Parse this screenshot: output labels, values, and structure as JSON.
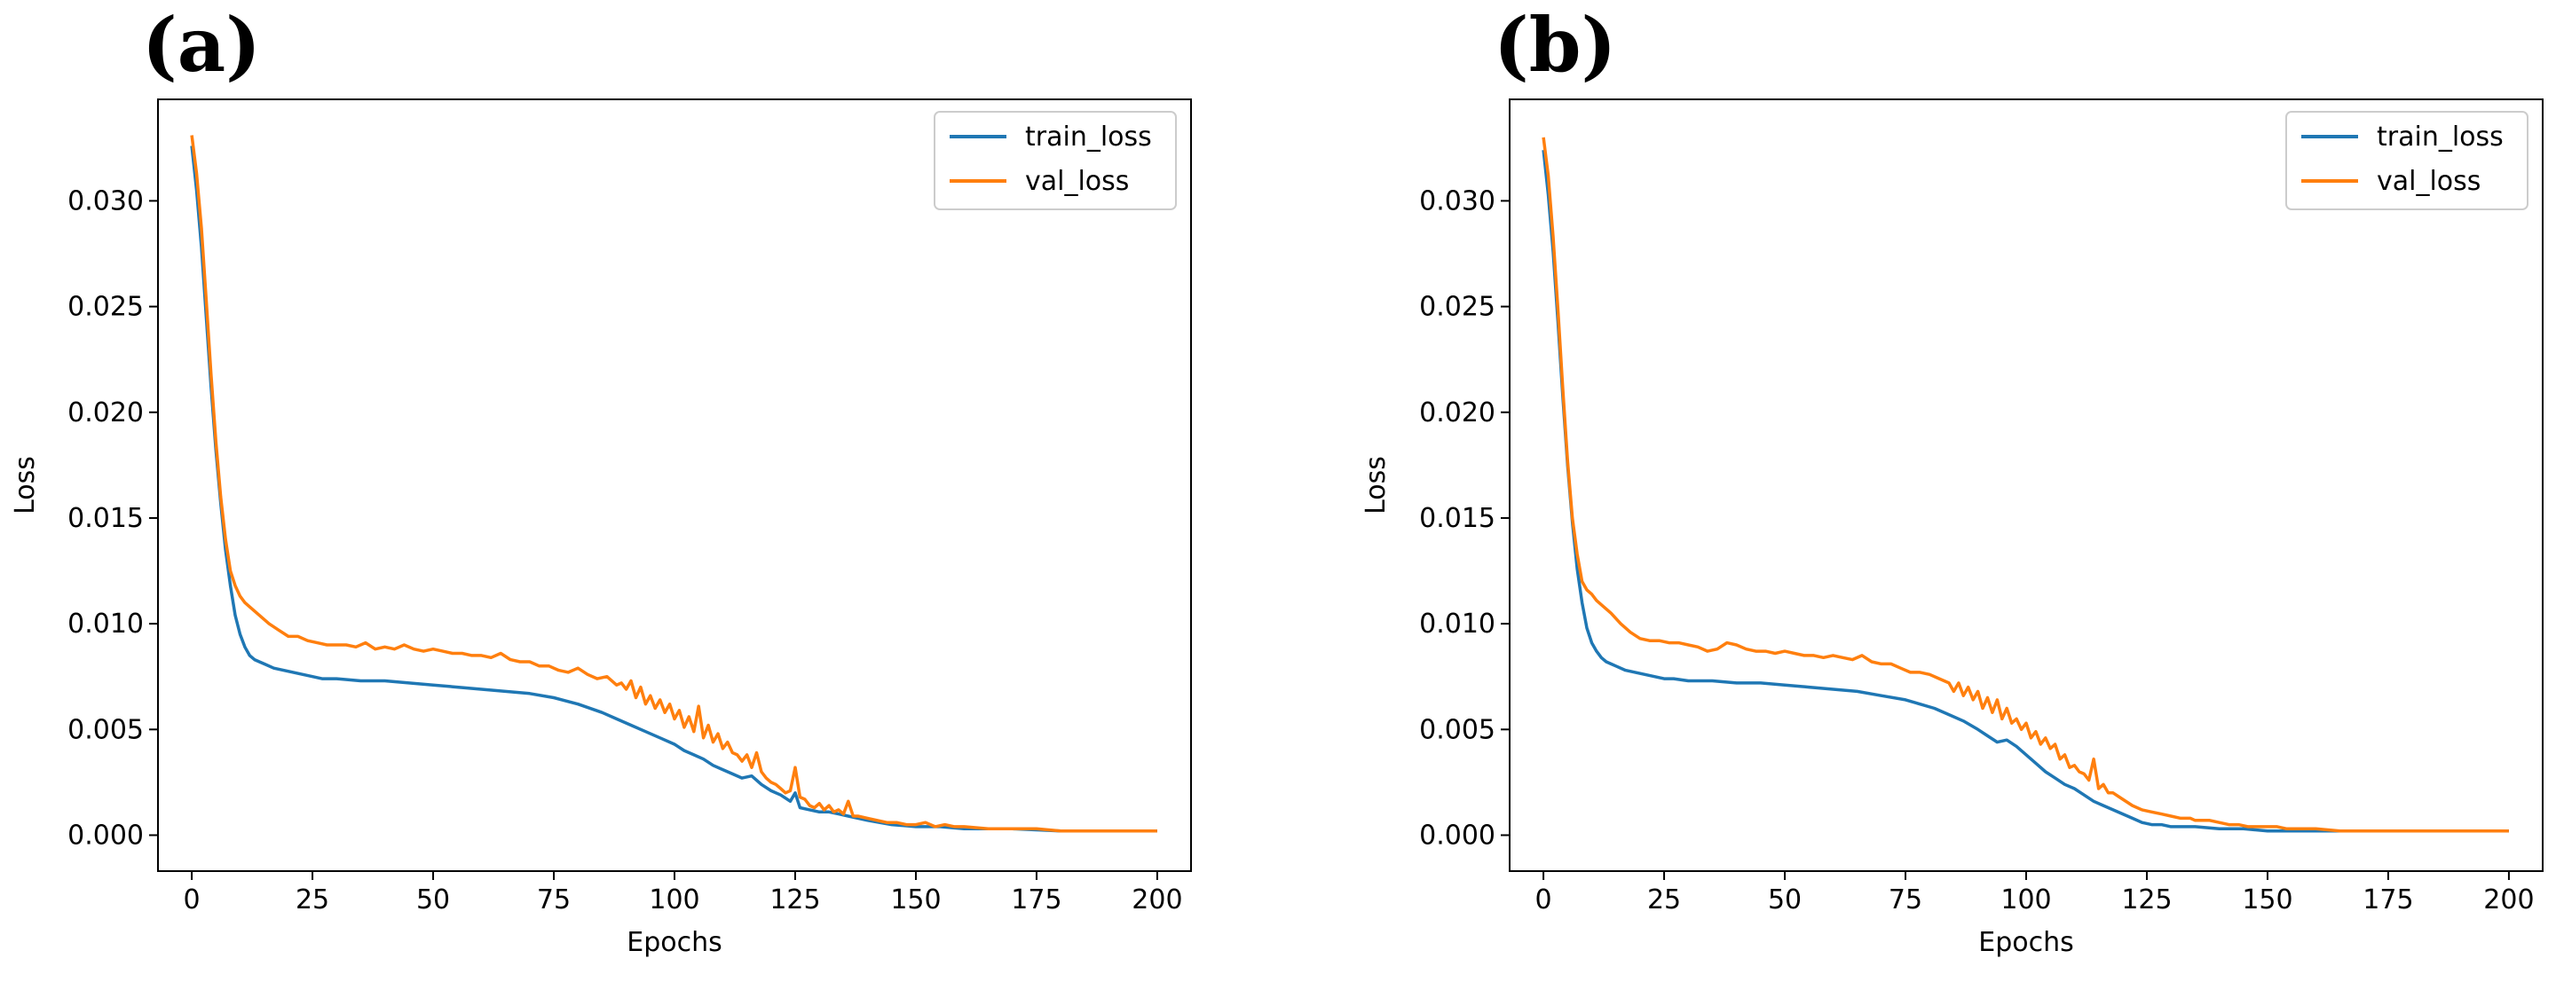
{
  "colors": {
    "train": "#1f77b4",
    "val": "#ff7f0e",
    "axes": "#000000"
  },
  "chart_data": [
    {
      "type": "line",
      "panel_label": "(a)",
      "title": "",
      "xlabel": "Epochs",
      "ylabel": "Loss",
      "xlim": [
        -7,
        207
      ],
      "ylim": [
        -0.0017,
        0.0348
      ],
      "xticks": [
        0,
        25,
        50,
        75,
        100,
        125,
        150,
        175,
        200
      ],
      "xtick_labels": [
        "0",
        "25",
        "50",
        "75",
        "100",
        "125",
        "150",
        "175",
        "200"
      ],
      "yticks": [
        0.0,
        0.005,
        0.01,
        0.015,
        0.02,
        0.025,
        0.03
      ],
      "ytick_labels": [
        "0.000",
        "0.005",
        "0.010",
        "0.015",
        "0.020",
        "0.025",
        "0.030"
      ],
      "legend": "top-right",
      "grid": false,
      "series": [
        {
          "name": "train_loss",
          "color": "#1f77b4",
          "x": [
            0,
            1,
            2,
            3,
            4,
            5,
            6,
            7,
            8,
            9,
            10,
            11,
            12,
            13,
            14,
            15,
            17,
            19,
            21,
            23,
            25,
            27,
            30,
            35,
            40,
            45,
            50,
            55,
            60,
            65,
            70,
            75,
            80,
            85,
            88,
            91,
            94,
            97,
            100,
            102,
            104,
            106,
            108,
            110,
            112,
            114,
            116,
            118,
            120,
            122,
            124,
            125,
            126,
            128,
            130,
            132,
            134,
            136,
            138,
            140,
            145,
            150,
            155,
            160,
            170,
            180,
            190,
            200
          ],
          "y": [
            0.0326,
            0.0305,
            0.0278,
            0.0245,
            0.0212,
            0.0182,
            0.0157,
            0.0135,
            0.0118,
            0.0104,
            0.0095,
            0.0089,
            0.0085,
            0.0083,
            0.0082,
            0.0081,
            0.0079,
            0.0078,
            0.0077,
            0.0076,
            0.0075,
            0.0074,
            0.0074,
            0.0073,
            0.0073,
            0.0072,
            0.0071,
            0.007,
            0.0069,
            0.0068,
            0.0067,
            0.0065,
            0.0062,
            0.0058,
            0.0055,
            0.0052,
            0.0049,
            0.0046,
            0.0043,
            0.004,
            0.0038,
            0.0036,
            0.0033,
            0.0031,
            0.0029,
            0.0027,
            0.0028,
            0.0024,
            0.0021,
            0.0019,
            0.0016,
            0.002,
            0.0013,
            0.0012,
            0.0011,
            0.0011,
            0.001,
            0.0009,
            0.0008,
            0.0007,
            0.0005,
            0.0004,
            0.0004,
            0.0003,
            0.0003,
            0.0002,
            0.0002,
            0.0002
          ]
        },
        {
          "name": "val_loss",
          "color": "#ff7f0e",
          "x": [
            0,
            1,
            2,
            3,
            4,
            5,
            6,
            7,
            8,
            9,
            10,
            11,
            12,
            14,
            16,
            18,
            20,
            22,
            24,
            26,
            28,
            30,
            32,
            34,
            36,
            38,
            40,
            42,
            44,
            46,
            48,
            50,
            52,
            54,
            56,
            58,
            60,
            62,
            64,
            66,
            68,
            70,
            72,
            74,
            76,
            78,
            80,
            82,
            84,
            86,
            88,
            89,
            90,
            91,
            92,
            93,
            94,
            95,
            96,
            97,
            98,
            99,
            100,
            101,
            102,
            103,
            104,
            105,
            106,
            107,
            108,
            109,
            110,
            111,
            112,
            113,
            114,
            115,
            116,
            117,
            118,
            119,
            120,
            121,
            122,
            123,
            124,
            125,
            126,
            127,
            128,
            129,
            130,
            131,
            132,
            133,
            134,
            135,
            136,
            137,
            138,
            140,
            142,
            144,
            146,
            148,
            150,
            152,
            154,
            156,
            158,
            160,
            165,
            170,
            175,
            180,
            185,
            190,
            195,
            200
          ],
          "y": [
            0.0331,
            0.0313,
            0.0287,
            0.0253,
            0.0218,
            0.0186,
            0.016,
            0.014,
            0.0125,
            0.0118,
            0.0113,
            0.011,
            0.0108,
            0.0104,
            0.01,
            0.0097,
            0.0094,
            0.0094,
            0.0092,
            0.0091,
            0.009,
            0.009,
            0.009,
            0.0089,
            0.0091,
            0.0088,
            0.0089,
            0.0088,
            0.009,
            0.0088,
            0.0087,
            0.0088,
            0.0087,
            0.0086,
            0.0086,
            0.0085,
            0.0085,
            0.0084,
            0.0086,
            0.0083,
            0.0082,
            0.0082,
            0.008,
            0.008,
            0.0078,
            0.0077,
            0.0079,
            0.0076,
            0.0074,
            0.0075,
            0.0071,
            0.0072,
            0.0069,
            0.0073,
            0.0065,
            0.007,
            0.0062,
            0.0066,
            0.006,
            0.0064,
            0.0058,
            0.0062,
            0.0055,
            0.0059,
            0.0051,
            0.0056,
            0.0049,
            0.0061,
            0.0046,
            0.0052,
            0.0044,
            0.0048,
            0.0041,
            0.0044,
            0.0039,
            0.0038,
            0.0035,
            0.0038,
            0.0032,
            0.0039,
            0.003,
            0.0027,
            0.0025,
            0.0024,
            0.0022,
            0.002,
            0.0021,
            0.0032,
            0.0018,
            0.0017,
            0.0014,
            0.0013,
            0.0015,
            0.0012,
            0.0014,
            0.0011,
            0.0012,
            0.001,
            0.0016,
            0.0009,
            0.0009,
            0.0008,
            0.0007,
            0.0006,
            0.0006,
            0.0005,
            0.0005,
            0.0006,
            0.0004,
            0.0005,
            0.0004,
            0.0004,
            0.0003,
            0.0003,
            0.0003,
            0.0002,
            0.0002,
            0.0002,
            0.0002,
            0.0002
          ]
        }
      ]
    },
    {
      "type": "line",
      "panel_label": "(b)",
      "title": "",
      "xlabel": "Epochs",
      "ylabel": "Loss",
      "xlim": [
        -7,
        207
      ],
      "ylim": [
        -0.0017,
        0.0348
      ],
      "xticks": [
        0,
        25,
        50,
        75,
        100,
        125,
        150,
        175,
        200
      ],
      "xtick_labels": [
        "0",
        "25",
        "50",
        "75",
        "100",
        "125",
        "150",
        "175",
        "200"
      ],
      "yticks": [
        0.0,
        0.005,
        0.01,
        0.015,
        0.02,
        0.025,
        0.03
      ],
      "ytick_labels": [
        "0.000",
        "0.005",
        "0.010",
        "0.015",
        "0.020",
        "0.025",
        "0.030"
      ],
      "legend": "top-right",
      "grid": false,
      "series": [
        {
          "name": "train_loss",
          "color": "#1f77b4",
          "x": [
            0,
            1,
            2,
            3,
            4,
            5,
            6,
            7,
            8,
            9,
            10,
            11,
            12,
            13,
            14,
            15,
            17,
            19,
            21,
            23,
            25,
            27,
            30,
            35,
            40,
            45,
            50,
            55,
            60,
            65,
            70,
            75,
            78,
            81,
            84,
            87,
            90,
            92,
            94,
            96,
            98,
            100,
            102,
            104,
            106,
            108,
            110,
            112,
            114,
            116,
            118,
            120,
            122,
            124,
            126,
            128,
            130,
            135,
            140,
            145,
            150,
            160,
            170,
            180,
            190,
            200
          ],
          "y": [
            0.0324,
            0.0303,
            0.0276,
            0.0243,
            0.0208,
            0.0175,
            0.0148,
            0.0126,
            0.011,
            0.0098,
            0.0091,
            0.0087,
            0.0084,
            0.0082,
            0.0081,
            0.008,
            0.0078,
            0.0077,
            0.0076,
            0.0075,
            0.0074,
            0.0074,
            0.0073,
            0.0073,
            0.0072,
            0.0072,
            0.0071,
            0.007,
            0.0069,
            0.0068,
            0.0066,
            0.0064,
            0.0062,
            0.006,
            0.0057,
            0.0054,
            0.005,
            0.0047,
            0.0044,
            0.0045,
            0.0042,
            0.0038,
            0.0034,
            0.003,
            0.0027,
            0.0024,
            0.0022,
            0.0019,
            0.0016,
            0.0014,
            0.0012,
            0.001,
            0.0008,
            0.0006,
            0.0005,
            0.0005,
            0.0004,
            0.0004,
            0.0003,
            0.0003,
            0.0002,
            0.0002,
            0.0002,
            0.0002,
            0.0002,
            0.0002
          ]
        },
        {
          "name": "val_loss",
          "color": "#ff7f0e",
          "x": [
            0,
            1,
            2,
            3,
            4,
            5,
            6,
            7,
            8,
            9,
            10,
            11,
            12,
            14,
            16,
            18,
            20,
            22,
            24,
            26,
            28,
            30,
            32,
            34,
            36,
            38,
            40,
            42,
            44,
            46,
            48,
            50,
            52,
            54,
            56,
            58,
            60,
            62,
            64,
            66,
            68,
            70,
            72,
            74,
            76,
            78,
            80,
            82,
            84,
            85,
            86,
            87,
            88,
            89,
            90,
            91,
            92,
            93,
            94,
            95,
            96,
            97,
            98,
            99,
            100,
            101,
            102,
            103,
            104,
            105,
            106,
            107,
            108,
            109,
            110,
            111,
            112,
            113,
            114,
            115,
            116,
            117,
            118,
            120,
            122,
            124,
            126,
            128,
            130,
            132,
            134,
            135,
            136,
            138,
            140,
            142,
            144,
            146,
            148,
            150,
            152,
            154,
            156,
            158,
            160,
            165,
            170,
            175,
            180,
            185,
            190,
            195,
            200
          ],
          "y": [
            0.033,
            0.0312,
            0.0283,
            0.0249,
            0.0212,
            0.0177,
            0.015,
            0.0133,
            0.012,
            0.0116,
            0.0114,
            0.0111,
            0.0109,
            0.0105,
            0.01,
            0.0096,
            0.0093,
            0.0092,
            0.0092,
            0.0091,
            0.0091,
            0.009,
            0.0089,
            0.0087,
            0.0088,
            0.0091,
            0.009,
            0.0088,
            0.0087,
            0.0087,
            0.0086,
            0.0087,
            0.0086,
            0.0085,
            0.0085,
            0.0084,
            0.0085,
            0.0084,
            0.0083,
            0.0085,
            0.0082,
            0.0081,
            0.0081,
            0.0079,
            0.0077,
            0.0077,
            0.0076,
            0.0074,
            0.0072,
            0.0068,
            0.0072,
            0.0066,
            0.007,
            0.0064,
            0.0068,
            0.006,
            0.0065,
            0.0058,
            0.0064,
            0.0055,
            0.006,
            0.0053,
            0.0055,
            0.005,
            0.0053,
            0.0046,
            0.0049,
            0.0043,
            0.0046,
            0.0041,
            0.0043,
            0.0036,
            0.0038,
            0.0032,
            0.0033,
            0.003,
            0.0029,
            0.0026,
            0.0036,
            0.0022,
            0.0024,
            0.002,
            0.002,
            0.0017,
            0.0014,
            0.0012,
            0.0011,
            0.001,
            0.0009,
            0.0008,
            0.0008,
            0.0007,
            0.0007,
            0.0007,
            0.0006,
            0.0005,
            0.0005,
            0.0004,
            0.0004,
            0.0004,
            0.0004,
            0.0003,
            0.0003,
            0.0003,
            0.0003,
            0.0002,
            0.0002,
            0.0002,
            0.0002,
            0.0002,
            0.0002,
            0.0002,
            0.0002
          ]
        }
      ]
    }
  ]
}
